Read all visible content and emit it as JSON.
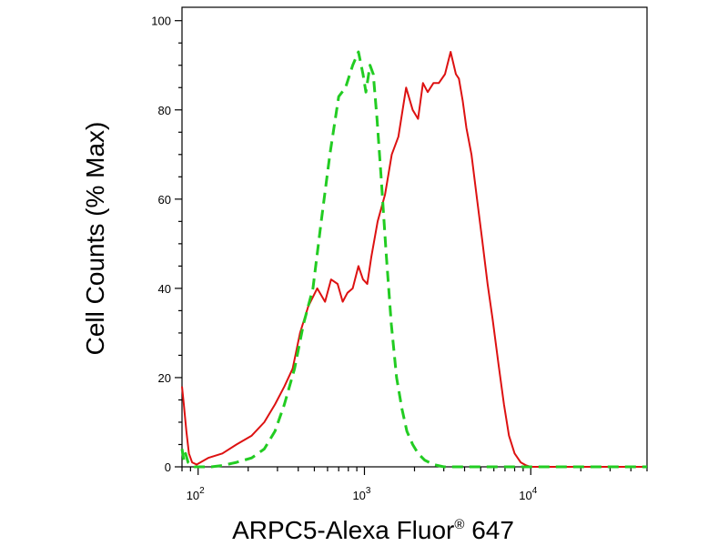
{
  "chart_data": {
    "type": "line",
    "title": "",
    "xlabel": "ARPC5-Alexa Fluor",
    "xlabel_superscript": "®",
    "xlabel_suffix": " 647",
    "ylabel": "Cell Counts (% Max)",
    "x_scale": "log",
    "xlim": [
      80,
      50000
    ],
    "ylim": [
      0,
      103
    ],
    "x_ticks": [
      {
        "base": "10",
        "exp": "2",
        "value": 100
      },
      {
        "base": "10",
        "exp": "3",
        "value": 1000
      },
      {
        "base": "10",
        "exp": "4",
        "value": 10000
      }
    ],
    "y_ticks": [
      {
        "label": "0",
        "value": 0
      },
      {
        "label": "20",
        "value": 20
      },
      {
        "label": "40",
        "value": 40
      },
      {
        "label": "60",
        "value": 60
      },
      {
        "label": "80",
        "value": 80
      },
      {
        "label": "100",
        "value": 100
      }
    ],
    "grid": false,
    "legend": "none",
    "series": [
      {
        "color": "#dd1111",
        "dash": "solid",
        "x": [
          80,
          82,
          85,
          88,
          92,
          98,
          115,
          140,
          170,
          210,
          250,
          290,
          330,
          370,
          410,
          460,
          520,
          580,
          630,
          690,
          740,
          790,
          850,
          920,
          980,
          1040,
          1100,
          1200,
          1330,
          1460,
          1600,
          1780,
          1950,
          2100,
          2250,
          2400,
          2600,
          2800,
          3050,
          3300,
          3550,
          3700,
          3900,
          4100,
          4400,
          4750,
          5100,
          5500,
          5900,
          6400,
          6900,
          7400,
          8000,
          8700,
          9400,
          10000,
          10500,
          11000,
          12000,
          15000,
          20000,
          30000,
          50000
        ],
        "y": [
          18,
          14,
          8,
          3,
          1,
          0.5,
          2,
          3,
          5,
          7,
          10,
          14,
          18,
          22,
          30,
          36,
          40,
          37,
          42,
          41,
          37,
          39,
          40,
          45,
          42,
          41,
          47,
          55,
          61,
          70,
          74,
          85,
          80,
          78,
          86,
          84,
          86,
          86,
          88,
          93,
          88,
          87,
          82,
          76,
          70,
          60,
          51,
          41,
          33,
          23,
          14,
          7,
          3,
          1,
          0.3,
          0,
          0,
          0,
          0,
          0,
          0,
          0,
          0
        ]
      },
      {
        "color": "#22cc22",
        "dash": "dashed",
        "x": [
          80,
          82,
          84,
          87,
          90,
          95,
          105,
          120,
          140,
          170,
          210,
          250,
          290,
          330,
          380,
          430,
          490,
          550,
          620,
          700,
          770,
          850,
          920,
          980,
          1020,
          1080,
          1130,
          1190,
          1260,
          1350,
          1450,
          1560,
          1680,
          1800,
          1950,
          2100,
          2300,
          2600,
          3000,
          3500,
          4500,
          6000,
          10000,
          50000
        ],
        "y": [
          4,
          1.5,
          3,
          1,
          0.5,
          0,
          0,
          0,
          0.3,
          1,
          2,
          4,
          8,
          14,
          22,
          32,
          40,
          55,
          70,
          83,
          85,
          90,
          93,
          88,
          84,
          90,
          88,
          78,
          65,
          48,
          32,
          20,
          13,
          8,
          5,
          3,
          1.5,
          0.5,
          0,
          0,
          0,
          0,
          0,
          0
        ]
      }
    ]
  }
}
